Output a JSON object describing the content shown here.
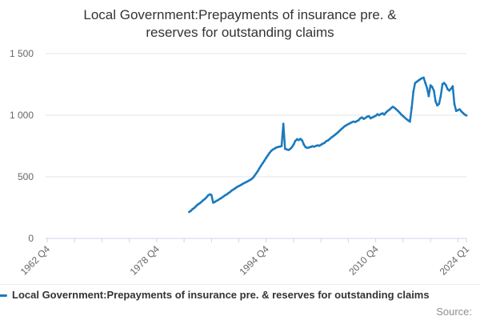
{
  "title": "Local Government:Prepayments of insurance pre. & reserves for outstanding claims",
  "legend": {
    "series_label": "Local Government:Prepayments of insurance pre. & reserves for outstanding claims"
  },
  "source_label": "Source:",
  "colors": {
    "line": "#1a7abe",
    "grid": "#e6e6e6",
    "axis": "#ccd6eb",
    "tick_label": "#666666",
    "title": "#333333",
    "source": "#8f8f8f"
  },
  "chart_data": {
    "type": "line",
    "title": "Local Government:Prepayments of insurance pre. & reserves for outstanding claims",
    "xlabel": "",
    "ylabel": "",
    "grid": true,
    "legend_position": "bottom",
    "x_axis": {
      "range_start": "1962 Q4",
      "range_end": "2024 Q1",
      "tick_labels": [
        "1962 Q4",
        "1978 Q4",
        "1994 Q4",
        "2010 Q4",
        "2024 Q1"
      ],
      "minor_tick_every_quarters": 16,
      "label_rotation_deg": -45
    },
    "y_axis": {
      "min": 0,
      "max": 1500,
      "tick_interval": 500,
      "tick_values": [
        0,
        500,
        1000,
        1500
      ],
      "tick_labels": [
        "0",
        "500",
        "1 000",
        "1 500"
      ]
    },
    "series": [
      {
        "name": "Local Government:Prepayments of insurance pre. & reserves for outstanding claims",
        "frequency": "quarterly",
        "start": "1983 Q3",
        "end": "2024 Q1",
        "values": [
          215,
          225,
          238,
          248,
          262,
          275,
          284,
          295,
          308,
          318,
          332,
          348,
          358,
          352,
          290,
          296,
          305,
          312,
          322,
          330,
          340,
          350,
          358,
          368,
          378,
          390,
          398,
          408,
          418,
          425,
          432,
          440,
          448,
          455,
          462,
          470,
          478,
          488,
          505,
          525,
          545,
          568,
          590,
          612,
          632,
          655,
          675,
          695,
          712,
          722,
          730,
          738,
          742,
          745,
          750,
          930,
          728,
          722,
          718,
          725,
          740,
          762,
          790,
          805,
          798,
          808,
          795,
          762,
          740,
          735,
          738,
          742,
          748,
          745,
          750,
          755,
          752,
          760,
          768,
          775,
          788,
          795,
          805,
          818,
          828,
          838,
          850,
          862,
          875,
          888,
          900,
          912,
          920,
          928,
          935,
          942,
          948,
          945,
          952,
          960,
          975,
          982,
          970,
          978,
          988,
          992,
          975,
          982,
          988,
          995,
          1008,
          1000,
          1010,
          1015,
          1005,
          1022,
          1035,
          1045,
          1058,
          1068,
          1060,
          1048,
          1035,
          1020,
          1005,
          992,
          980,
          968,
          958,
          948,
          1060,
          1190,
          1260,
          1272,
          1282,
          1292,
          1300,
          1305,
          1262,
          1220,
          1155,
          1242,
          1230,
          1198,
          1112,
          1080,
          1092,
          1155,
          1252,
          1262,
          1245,
          1212,
          1200,
          1215,
          1235,
          1090,
          1035,
          1040,
          1048,
          1032,
          1018,
          1005,
          998
        ]
      }
    ]
  }
}
